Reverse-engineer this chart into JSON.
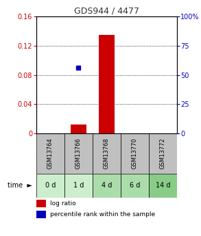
{
  "title": "GDS944 / 4477",
  "samples": [
    "GSM13764",
    "GSM13766",
    "GSM13768",
    "GSM13770",
    "GSM13772"
  ],
  "time_labels": [
    "0 d",
    "1 d",
    "4 d",
    "6 d",
    "14 d"
  ],
  "log_ratio": [
    0.0,
    0.012,
    0.135,
    0.0,
    0.0
  ],
  "percentile_rank_pct": [
    null,
    56.25,
    null,
    null,
    null
  ],
  "ylim_left": [
    0,
    0.16
  ],
  "ylim_right": [
    0,
    100
  ],
  "yticks_left": [
    0,
    0.04,
    0.08,
    0.12,
    0.16
  ],
  "ytick_labels_left": [
    "0",
    "0.04",
    "0.08",
    "0.12",
    "0.16"
  ],
  "yticks_right": [
    0,
    25,
    50,
    75,
    100
  ],
  "ytick_labels_right": [
    "0",
    "25",
    "50",
    "75",
    "100%"
  ],
  "bar_color": "#cc0000",
  "marker_color": "#0000bb",
  "sample_bg_color": "#c0c0c0",
  "time_bg_colors": [
    "#cceecc",
    "#cceecc",
    "#aaddaa",
    "#aaddaa",
    "#88cc88"
  ],
  "title_color": "#333333",
  "left_axis_color": "#cc0000",
  "right_axis_color": "#0000bb",
  "grid_color": "#000000",
  "legend_log_ratio": "log ratio",
  "legend_percentile": "percentile rank within the sample",
  "fig_width": 2.93,
  "fig_height": 3.45,
  "dpi": 100
}
